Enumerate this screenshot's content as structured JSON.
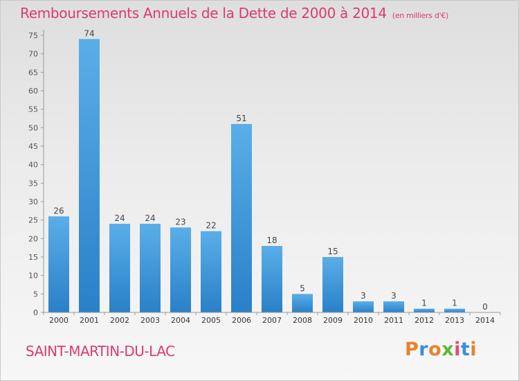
{
  "header": {
    "title": "Remboursements Annuels de la Dette de 2000 à 2014",
    "subtitle": "(en milliers d'€)"
  },
  "footer": {
    "commune": "SAINT-MARTIN-DU-LAC",
    "logo": "Proxiti"
  },
  "colors": {
    "title": "#dc3b6c",
    "bar_light": "#5aaee8",
    "bar_dark": "#2a80c8",
    "logo_letters": [
      "#e8822a",
      "#3a8fd8",
      "#e8822a",
      "#5cb83a",
      "#e84a7a",
      "#3a8fd8",
      "#e8822a"
    ]
  },
  "chart_data": {
    "type": "bar",
    "categories": [
      "2000",
      "2001",
      "2002",
      "2003",
      "2004",
      "2005",
      "2006",
      "2007",
      "2008",
      "2009",
      "2010",
      "2011",
      "2012",
      "2013",
      "2014"
    ],
    "values": [
      26,
      74,
      24,
      24,
      23,
      22,
      51,
      18,
      5,
      15,
      3,
      3,
      1,
      1,
      0
    ],
    "title": "Remboursements Annuels de la Dette de 2000 à 2014",
    "xlabel": "",
    "ylabel": "",
    "ylim": [
      0,
      75
    ],
    "yticks": [
      0,
      5,
      10,
      15,
      20,
      25,
      30,
      35,
      40,
      45,
      50,
      55,
      60,
      65,
      70,
      75
    ],
    "grid": false,
    "legend": "none"
  }
}
